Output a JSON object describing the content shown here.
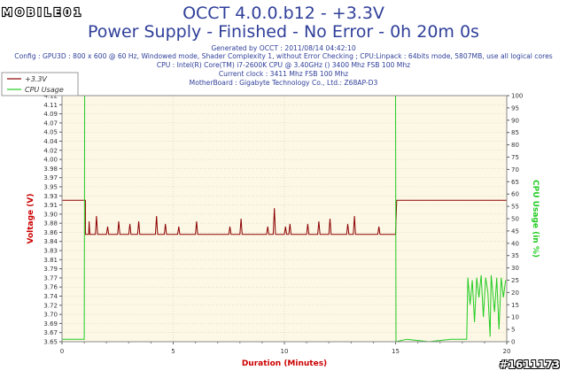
{
  "header": {
    "title": "OCCT 4.0.0.b12 - +3.3V",
    "subtitle": "Power Supply - Finished - No Error - 0h 20m 0s",
    "info_lines": [
      "Generated by OCCT : 2011/08/14 04:42:10",
      "Config : GPU3D : 800 x 600 @ 60 Hz, Windowed mode, Shader Complexity 1, without Error Checking ; CPU:Linpack : 64bits mode, 5807MB, use all logical cores",
      "CPU : Intel(R) Core(TM) i7-2600K CPU @ 3.40GHz () 3400 Mhz FSB 100 Mhz",
      "Current clock : 3411 Mhz FSB 100 Mhz",
      "MotherBoard : Gigabyte Technology Co., Ltd.: Z68AP-D3"
    ]
  },
  "logo": {
    "text": "MOBILE01"
  },
  "watermark": {
    "text": "#1611173"
  },
  "colors": {
    "voltage": "#8b0000",
    "cpu": "#22cc22",
    "plot_bg": "#fdf8e6",
    "grid": "#c8c0a8",
    "title": "#2f3f99",
    "left_axis_title": "#cc0000",
    "right_axis_title": "#22cc22",
    "x_axis_title": "#cc0000"
  },
  "chart_data": {
    "type": "line",
    "xlabel": "Duration (Minutes)",
    "ylabel": "Voltage (V)",
    "y2label": "CPU Usage (in %)",
    "xlim": [
      0,
      20
    ],
    "ylim": [
      3.65,
      4.12
    ],
    "y2lim": [
      0,
      100
    ],
    "x_ticks": [
      "0",
      "5",
      "10",
      "15",
      "20"
    ],
    "y_ticks": [
      "3.65",
      "3.67",
      "3.69",
      "3.70",
      "3.72",
      "3.74",
      "3.76",
      "3.77",
      "3.79",
      "3.81",
      "3.83",
      "3.84",
      "3.86",
      "3.88",
      "3.90",
      "3.91",
      "3.93",
      "3.95",
      "3.97",
      "3.98",
      "4.00",
      "4.02",
      "4.04",
      "4.05",
      "4.07",
      "4.09",
      "4.11",
      "4.12"
    ],
    "y2_ticks": [
      "0",
      "5",
      "10",
      "15",
      "20",
      "25",
      "30",
      "35",
      "40",
      "45",
      "50",
      "55",
      "60",
      "65",
      "70",
      "75",
      "80",
      "85",
      "90",
      "95",
      "100"
    ],
    "grid": true,
    "legend": "top-left",
    "series": [
      {
        "name": "+3.3V",
        "axis": "left",
        "points": [
          [
            0,
            3.92
          ],
          [
            1.05,
            3.92
          ],
          [
            1.05,
            3.855
          ],
          [
            1.2,
            3.855
          ],
          [
            1.22,
            3.88
          ],
          [
            1.25,
            3.855
          ],
          [
            1.5,
            3.855
          ],
          [
            1.55,
            3.89
          ],
          [
            1.6,
            3.855
          ],
          [
            2.0,
            3.855
          ],
          [
            2.05,
            3.87
          ],
          [
            2.1,
            3.855
          ],
          [
            2.5,
            3.855
          ],
          [
            2.55,
            3.88
          ],
          [
            2.6,
            3.855
          ],
          [
            3.0,
            3.855
          ],
          [
            3.05,
            3.875
          ],
          [
            3.1,
            3.855
          ],
          [
            3.4,
            3.855
          ],
          [
            3.45,
            3.88
          ],
          [
            3.5,
            3.855
          ],
          [
            4.2,
            3.855
          ],
          [
            4.25,
            3.89
          ],
          [
            4.3,
            3.855
          ],
          [
            4.6,
            3.855
          ],
          [
            4.65,
            3.875
          ],
          [
            4.7,
            3.855
          ],
          [
            5.2,
            3.855
          ],
          [
            5.25,
            3.87
          ],
          [
            5.3,
            3.855
          ],
          [
            6.0,
            3.855
          ],
          [
            6.05,
            3.88
          ],
          [
            6.1,
            3.855
          ],
          [
            7.5,
            3.855
          ],
          [
            7.55,
            3.87
          ],
          [
            7.6,
            3.855
          ],
          [
            8.0,
            3.855
          ],
          [
            8.05,
            3.885
          ],
          [
            8.1,
            3.855
          ],
          [
            9.2,
            3.855
          ],
          [
            9.25,
            3.87
          ],
          [
            9.3,
            3.855
          ],
          [
            9.5,
            3.855
          ],
          [
            9.55,
            3.905
          ],
          [
            9.6,
            3.855
          ],
          [
            10.0,
            3.855
          ],
          [
            10.05,
            3.87
          ],
          [
            10.1,
            3.855
          ],
          [
            10.2,
            3.855
          ],
          [
            10.25,
            3.875
          ],
          [
            10.3,
            3.855
          ],
          [
            11.0,
            3.855
          ],
          [
            11.05,
            3.875
          ],
          [
            11.1,
            3.855
          ],
          [
            11.5,
            3.855
          ],
          [
            11.55,
            3.88
          ],
          [
            11.6,
            3.855
          ],
          [
            12.0,
            3.855
          ],
          [
            12.05,
            3.885
          ],
          [
            12.1,
            3.855
          ],
          [
            12.8,
            3.855
          ],
          [
            12.85,
            3.875
          ],
          [
            12.9,
            3.855
          ],
          [
            13.1,
            3.855
          ],
          [
            13.15,
            3.89
          ],
          [
            13.2,
            3.855
          ],
          [
            14.2,
            3.855
          ],
          [
            14.25,
            3.87
          ],
          [
            14.3,
            3.855
          ],
          [
            14.9,
            3.855
          ],
          [
            15.0,
            3.855
          ],
          [
            15.05,
            3.92
          ],
          [
            20,
            3.92
          ]
        ]
      },
      {
        "name": "CPU Usage",
        "axis": "right",
        "points": [
          [
            0,
            1
          ],
          [
            1.0,
            1
          ],
          [
            1.02,
            100
          ],
          [
            15.0,
            100
          ],
          [
            15.02,
            0
          ],
          [
            15.5,
            1
          ],
          [
            16.5,
            0
          ],
          [
            17.5,
            1
          ],
          [
            18.2,
            1
          ],
          [
            18.25,
            26
          ],
          [
            18.35,
            15
          ],
          [
            18.45,
            25
          ],
          [
            18.55,
            8
          ],
          [
            18.65,
            26
          ],
          [
            18.75,
            18
          ],
          [
            18.85,
            27
          ],
          [
            18.95,
            10
          ],
          [
            19.05,
            26
          ],
          [
            19.15,
            20
          ],
          [
            19.25,
            2
          ],
          [
            19.3,
            27
          ],
          [
            19.45,
            12
          ],
          [
            19.55,
            26
          ],
          [
            19.65,
            5
          ],
          [
            19.75,
            26
          ],
          [
            19.85,
            18
          ],
          [
            19.95,
            25
          ]
        ]
      }
    ]
  }
}
